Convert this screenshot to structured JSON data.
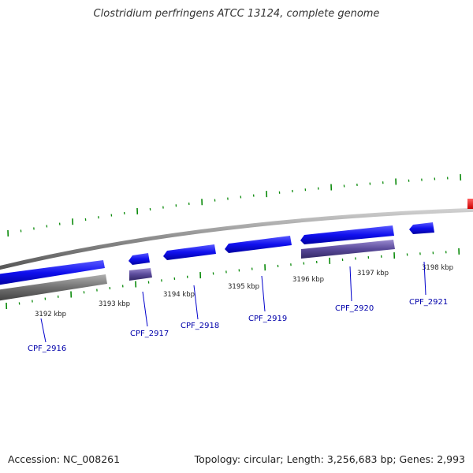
{
  "header": {
    "title": "Clostridium perfringens ATCC 13124, complete genome"
  },
  "footer": {
    "accession": "Accession: NC_008261",
    "topology": "Topology: circular; Length: 3,256,683 bp; Genes: 2,993"
  },
  "colors": {
    "backbone": "#8a8a8a",
    "gene_forward": "#1010ee",
    "gene_reverse": "#5a4a9a",
    "pseudo_gene": "#707070",
    "tick": "#0a8a0a",
    "label_line": "#0000cc",
    "highlight": "#ee1010"
  },
  "ruler": {
    "labels": [
      "3192 kbp",
      "3193 kbp",
      "3194 kbp",
      "3195 kbp",
      "3196 kbp",
      "3197 kbp",
      "3198 kbp"
    ]
  },
  "genes": [
    {
      "label": "CPF_2916"
    },
    {
      "label": "CPF_2917"
    },
    {
      "label": "CPF_2918"
    },
    {
      "label": "CPF_2919"
    },
    {
      "label": "CPF_2920"
    },
    {
      "label": "CPF_2921"
    }
  ]
}
